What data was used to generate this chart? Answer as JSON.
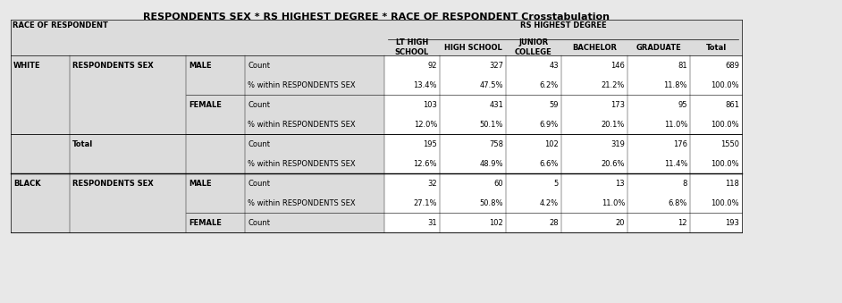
{
  "title": "RESPONDENTS SEX * RS HIGHEST DEGREE * RACE OF RESPONDENT Crosstabulation",
  "top_left_label": "RACE OF RESPONDENT",
  "top_header_label": "RS HIGHEST DEGREE",
  "col_headers": [
    "LT HIGH\nSCHOOL",
    "HIGH SCHOOL",
    "JUNIOR\nCOLLEGE",
    "BACHELOR",
    "GRADUATE",
    "Total"
  ],
  "rows": [
    {
      "race": "WHITE",
      "sex_label": "RESPONDENTS SEX",
      "sex": "MALE",
      "row_label": "Count",
      "values": [
        "92",
        "327",
        "43",
        "146",
        "81",
        "689"
      ]
    },
    {
      "race": "",
      "sex_label": "",
      "sex": "",
      "row_label": "% within RESPONDENTS SEX",
      "values": [
        "13.4%",
        "47.5%",
        "6.2%",
        "21.2%",
        "11.8%",
        "100.0%"
      ]
    },
    {
      "race": "",
      "sex_label": "",
      "sex": "FEMALE",
      "row_label": "Count",
      "values": [
        "103",
        "431",
        "59",
        "173",
        "95",
        "861"
      ]
    },
    {
      "race": "",
      "sex_label": "",
      "sex": "",
      "row_label": "% within RESPONDENTS SEX",
      "values": [
        "12.0%",
        "50.1%",
        "6.9%",
        "20.1%",
        "11.0%",
        "100.0%"
      ]
    },
    {
      "race": "",
      "sex_label": "Total",
      "sex": "",
      "row_label": "Count",
      "values": [
        "195",
        "758",
        "102",
        "319",
        "176",
        "1550"
      ]
    },
    {
      "race": "",
      "sex_label": "",
      "sex": "",
      "row_label": "% within RESPONDENTS SEX",
      "values": [
        "12.6%",
        "48.9%",
        "6.6%",
        "20.6%",
        "11.4%",
        "100.0%"
      ]
    },
    {
      "race": "BLACK",
      "sex_label": "RESPONDENTS SEX",
      "sex": "MALE",
      "row_label": "Count",
      "values": [
        "32",
        "60",
        "5",
        "13",
        "8",
        "118"
      ]
    },
    {
      "race": "",
      "sex_label": "",
      "sex": "",
      "row_label": "% within RESPONDENTS SEX",
      "values": [
        "27.1%",
        "50.8%",
        "4.2%",
        "11.0%",
        "6.8%",
        "100.0%"
      ]
    },
    {
      "race": "",
      "sex_label": "",
      "sex": "FEMALE",
      "row_label": "Count",
      "values": [
        "31",
        "102",
        "28",
        "20",
        "12",
        "193"
      ]
    }
  ],
  "font_size": 6.0,
  "title_font_size": 8.0,
  "label_bg": "#dcdcdc",
  "data_bg": "#ffffff",
  "outer_bg": "#e8e8e8"
}
